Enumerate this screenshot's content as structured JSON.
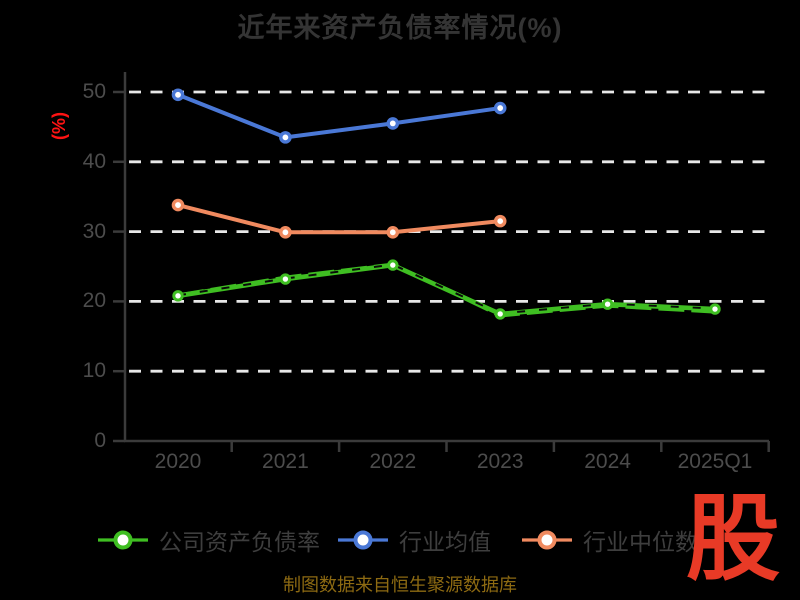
{
  "title": "近年来资产负债率情况(%)",
  "footer": {
    "source_note": "制图数据来自恒生聚源数据库"
  },
  "logo": {
    "text": "股"
  },
  "colors": {
    "background": "#000000",
    "title_text": "#343434",
    "axis_line": "#3b3b3b",
    "tick_label": "#4c4c4c",
    "gridline": "#e8e8e8",
    "legend_text": "#3e3e3e",
    "y_axis_title": "#ff1313",
    "source_note": "#8d6a12",
    "logo_red": "#e83a26",
    "marker_fill": "#ffffff"
  },
  "chart_data": {
    "type": "line",
    "title": "近年来资产负债率情况(%)",
    "ylabel": "(%)",
    "xlabel": "",
    "categories": [
      "2020",
      "2021",
      "2022",
      "2023",
      "2024",
      "2025Q1"
    ],
    "y_ticks": [
      0,
      10,
      20,
      30,
      40,
      50
    ],
    "ylim": [
      0,
      50
    ],
    "grid": "horizontal-dashed-white",
    "legend_position": "bottom",
    "series": [
      {
        "name": "公司资产负债率",
        "color": "#3fbe22",
        "style": "sketchy-dashed",
        "marker": "circle-white-fill",
        "values": [
          20.8,
          23.2,
          25.2,
          18.2,
          19.6,
          18.9
        ]
      },
      {
        "name": "行业均值",
        "color": "#4a78d6",
        "style": "solid",
        "marker": "circle-white-fill",
        "values": [
          49.6,
          43.5,
          45.5,
          47.7,
          null,
          null
        ]
      },
      {
        "name": "行业中位数",
        "color": "#f08a5f",
        "style": "solid",
        "marker": "circle-white-fill",
        "values": [
          33.8,
          29.9,
          29.9,
          31.5,
          null,
          null
        ]
      }
    ]
  }
}
